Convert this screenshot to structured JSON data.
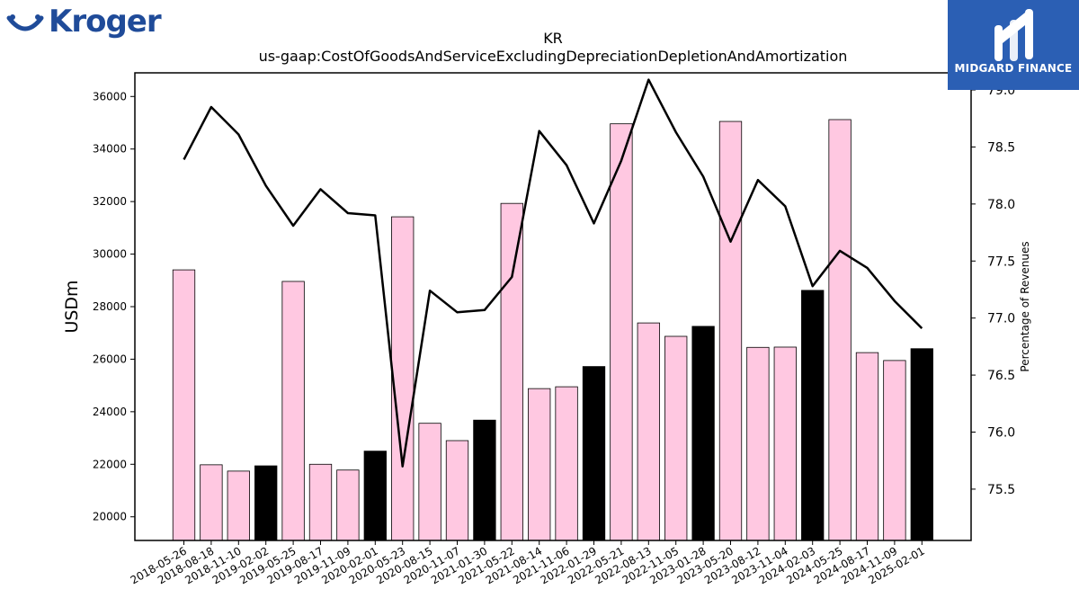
{
  "logos": {
    "left": "Kroger",
    "right": "MIDGARD FINANCE"
  },
  "chart_data": {
    "type": "bar",
    "title": "KR",
    "subtitle": "us-gaap:CostOfGoodsAndServiceExcludingDepreciationDepletionAndAmortization",
    "ylabel": "USDm",
    "y2label": "Percentage of Revenues",
    "ylim": [
      19100,
      36900
    ],
    "y2lim": [
      75.05,
      79.15
    ],
    "yticks": [
      20000,
      22000,
      24000,
      26000,
      28000,
      30000,
      32000,
      34000,
      36000
    ],
    "y2ticks": [
      75.5,
      76.0,
      76.5,
      77.0,
      77.5,
      78.0,
      78.5,
      79.0
    ],
    "categories": [
      "2018-05-26",
      "2018-08-18",
      "2018-11-10",
      "2019-02-02",
      "2019-05-25",
      "2019-08-17",
      "2019-11-09",
      "2020-02-01",
      "2020-05-23",
      "2020-08-15",
      "2020-11-07",
      "2021-01-30",
      "2021-05-22",
      "2021-08-14",
      "2021-11-06",
      "2022-01-29",
      "2022-05-21",
      "2022-08-13",
      "2022-11-05",
      "2023-01-28",
      "2023-05-20",
      "2023-08-12",
      "2023-11-04",
      "2024-02-03",
      "2024-05-25",
      "2024-08-17",
      "2024-11-09",
      "2025-02-01"
    ],
    "series": [
      {
        "type": "bar",
        "values": [
          29400,
          21980,
          21740,
          21940,
          28960,
          22000,
          21780,
          22500,
          31420,
          23560,
          22900,
          23680,
          31930,
          24880,
          24950,
          25720,
          34960,
          27380,
          26870,
          27250,
          35050,
          26450,
          26460,
          28620,
          35120,
          26250,
          25950,
          26400
        ],
        "colors": [
          "#ffc8e1",
          "#ffc8e1",
          "#ffc8e1",
          "#000000",
          "#ffc8e1",
          "#ffc8e1",
          "#ffc8e1",
          "#000000",
          "#ffc8e1",
          "#ffc8e1",
          "#ffc8e1",
          "#000000",
          "#ffc8e1",
          "#ffc8e1",
          "#ffc8e1",
          "#000000",
          "#ffc8e1",
          "#ffc8e1",
          "#ffc8e1",
          "#000000",
          "#ffc8e1",
          "#ffc8e1",
          "#ffc8e1",
          "#000000",
          "#ffc8e1",
          "#ffc8e1",
          "#ffc8e1",
          "#000000"
        ]
      },
      {
        "type": "line",
        "axis": "right",
        "color": "#000000",
        "values": [
          78.39,
          78.85,
          78.61,
          78.16,
          77.81,
          78.13,
          77.92,
          77.9,
          75.7,
          77.24,
          77.05,
          77.07,
          77.36,
          78.64,
          78.34,
          77.83,
          78.38,
          79.09,
          78.63,
          78.24,
          77.67,
          78.21,
          77.98,
          77.28,
          77.59,
          77.44,
          77.15,
          76.91
        ]
      }
    ],
    "grid": false
  }
}
